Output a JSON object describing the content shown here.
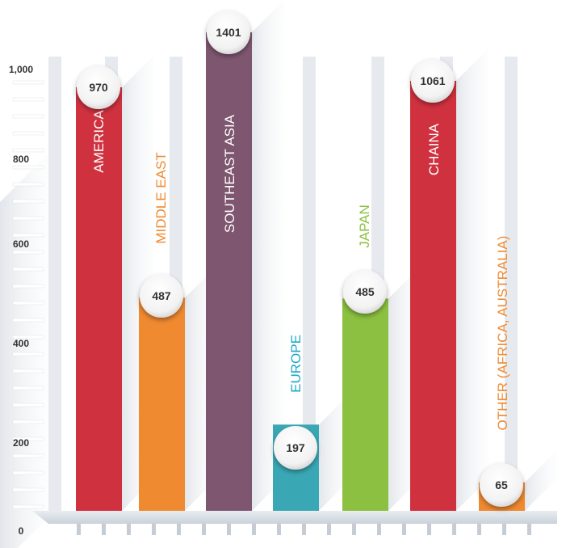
{
  "chart_data": {
    "type": "bar",
    "title": "",
    "xlabel": "",
    "ylabel": "",
    "ylim": [
      0,
      1000
    ],
    "yticks": [
      "0",
      "200",
      "400",
      "600",
      "800",
      "1,000"
    ],
    "ytick_values": [
      0,
      200,
      400,
      600,
      800,
      1000
    ],
    "grid": false,
    "legend": "none",
    "categories": [
      "AMERICA",
      "MIDDLE EAST",
      "SOUTHEAST ASIA",
      "EUROPE",
      "JAPAN",
      "CHAINA",
      "OTHER (AFRICA, AUSTRALIA)"
    ],
    "values": [
      970,
      487,
      1401,
      197,
      485,
      1061,
      65
    ],
    "value_labels": [
      "970",
      "487",
      "1401",
      "197",
      "485",
      "1061",
      "65"
    ],
    "bar_colors": [
      "#d0313f",
      "#f08a30",
      "#7e566f",
      "#3aa7b5",
      "#8bc040",
      "#d0313f",
      "#f08a30"
    ],
    "label_colors": [
      "#ffffff",
      "#f08a30",
      "#ffffff",
      "#1ba8c8",
      "#8bc040",
      "#ffffff",
      "#f08a30"
    ]
  }
}
